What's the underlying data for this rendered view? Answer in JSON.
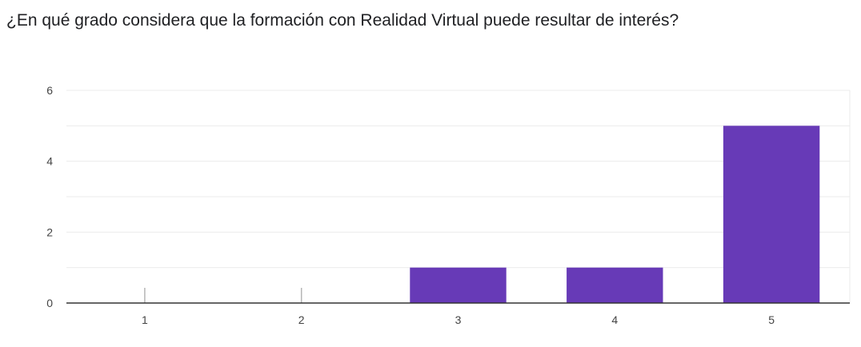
{
  "chart_data": {
    "type": "bar",
    "title": "¿En qué grado considera que la formación con Realidad Virtual puede resultar de interés?",
    "xlabel": "",
    "ylabel": "",
    "categories": [
      "1",
      "2",
      "3",
      "4",
      "5"
    ],
    "values": [
      0,
      0,
      1,
      1,
      5
    ],
    "ylim": [
      0,
      6
    ],
    "yticks": [
      0,
      2,
      4,
      6
    ],
    "grid": true,
    "bar_color": "#673ab7",
    "grid_color": "#ebebeb",
    "axis_color": "#333333"
  }
}
